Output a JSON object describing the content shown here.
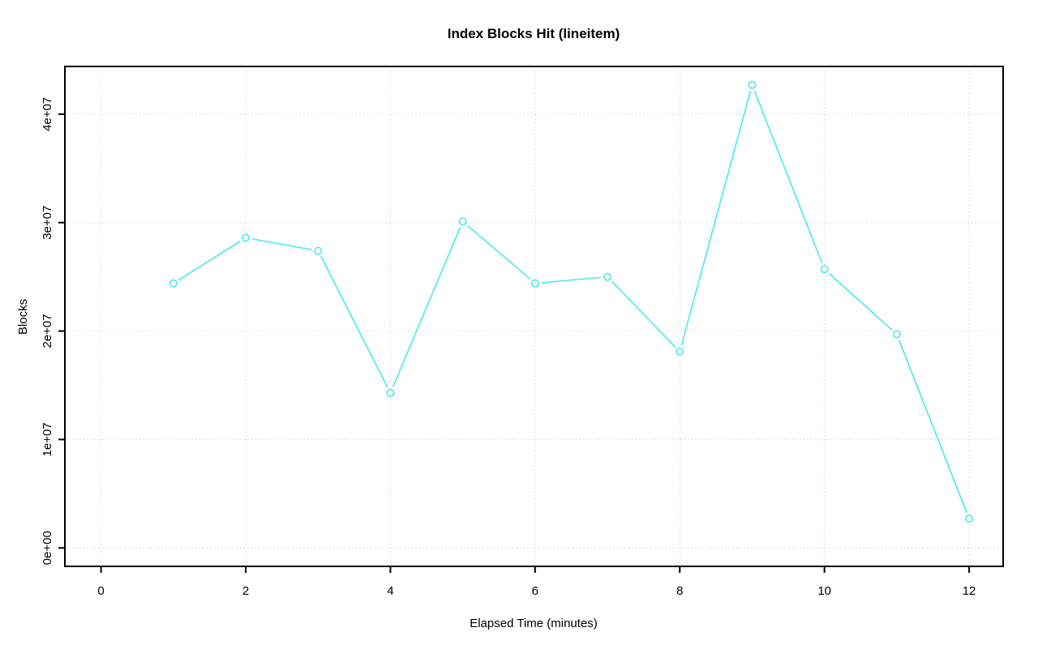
{
  "figure": {
    "title": "Index Blocks Hit (lineitem)",
    "xlabel": "Elapsed Time (minutes)",
    "ylabel": "Blocks",
    "background_color": "#ffffff"
  },
  "chart_data": {
    "type": "line",
    "title": "Index Blocks Hit (lineitem)",
    "xlabel": "Elapsed Time (minutes)",
    "ylabel": "Blocks",
    "x": [
      1,
      2,
      3,
      4,
      5,
      6,
      7,
      8,
      9,
      10,
      11,
      12
    ],
    "y": [
      24400000,
      28600000,
      27400000,
      14300000,
      30100000,
      24400000,
      25000000,
      18100000,
      42700000,
      25700000,
      19700000,
      2700000
    ],
    "x_ticks": [
      0,
      2,
      4,
      6,
      8,
      10,
      12
    ],
    "x_tick_labels": [
      "0",
      "2",
      "4",
      "6",
      "8",
      "10",
      "12"
    ],
    "y_ticks": [
      0,
      10000000,
      20000000,
      30000000,
      40000000
    ],
    "y_tick_labels": [
      "0e+00",
      "1e+07",
      "2e+07",
      "3e+07",
      "4e+07"
    ],
    "xlim": [
      -0.5,
      12.47
    ],
    "ylim": [
      -1700000,
      44400000
    ],
    "grid": true,
    "grid_style": "dotted",
    "grid_color": "#d3d3d3",
    "line_color": "#53eaea",
    "marker": "open-circle",
    "marker_color": "#53eaea",
    "axis_color": "#000000",
    "legend": null
  }
}
